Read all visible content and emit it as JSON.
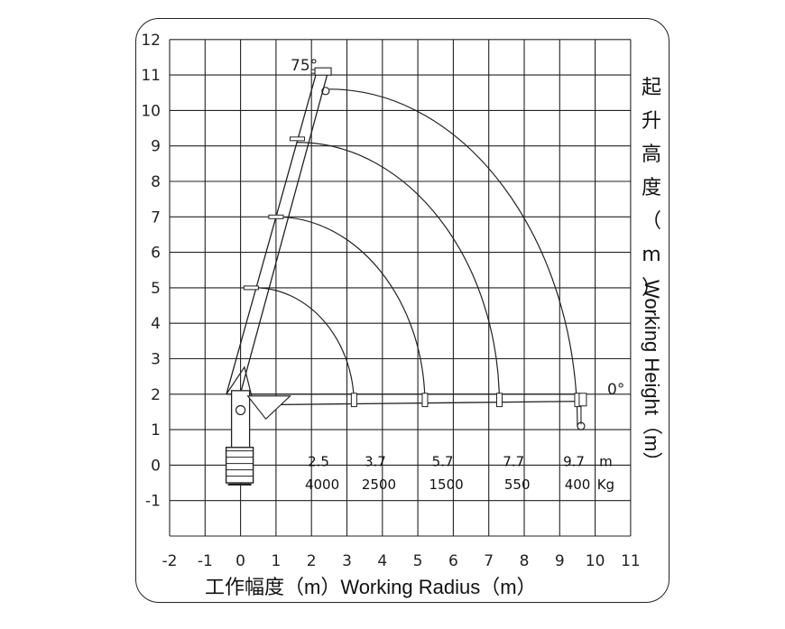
{
  "axes": {
    "x_ticks": [
      "-2",
      "-1",
      "0",
      "1",
      "2",
      "3",
      "4",
      "5",
      "6",
      "7",
      "8",
      "9",
      "10",
      "11"
    ],
    "y_ticks": [
      "12",
      "11",
      "10",
      "9",
      "8",
      "7",
      "6",
      "5",
      "4",
      "3",
      "2",
      "1",
      "0",
      "-1"
    ],
    "x_title": "工作幅度（m）Working Radius（m）",
    "y_title_cn": [
      "起",
      "升",
      "高",
      "度",
      "（",
      "m",
      "）"
    ],
    "y_title_en": "Working Height（m）"
  },
  "angles": {
    "max": "75°",
    "min": "0°"
  },
  "load_table": {
    "radius": [
      "2.5",
      "3.7",
      "5.7",
      "7.7",
      "9.7"
    ],
    "load": [
      "4000",
      "2500",
      "1500",
      "550",
      "400"
    ],
    "radius_unit": "m",
    "load_unit": "Kg"
  },
  "boom": {
    "sections_75": [
      {
        "x": 0.3,
        "y": 5.0
      },
      {
        "x": 1.0,
        "y": 7.0
      },
      {
        "x": 1.6,
        "y": 9.2
      },
      {
        "x": 2.2,
        "y": 11.1
      }
    ],
    "sections_0": [
      3.2,
      5.2,
      7.3,
      9.5
    ],
    "boom_pivot": {
      "x": -0.4,
      "y": 2.0
    },
    "hook_75": {
      "x": 2.5,
      "y": 10.6
    },
    "hook_0": {
      "x": 9.5,
      "y": 1.0
    }
  },
  "arcs": [
    {
      "from": {
        "x": 0.4,
        "y": 5.0
      },
      "to": {
        "x": 3.2,
        "y": 1.7
      }
    },
    {
      "from": {
        "x": 1.0,
        "y": 7.0
      },
      "to": {
        "x": 5.2,
        "y": 1.7
      }
    },
    {
      "from": {
        "x": 1.6,
        "y": 9.1
      },
      "to": {
        "x": 7.3,
        "y": 1.7
      }
    },
    {
      "from": {
        "x": 2.5,
        "y": 10.6
      },
      "to": {
        "x": 9.5,
        "y": 1.1
      }
    }
  ]
}
